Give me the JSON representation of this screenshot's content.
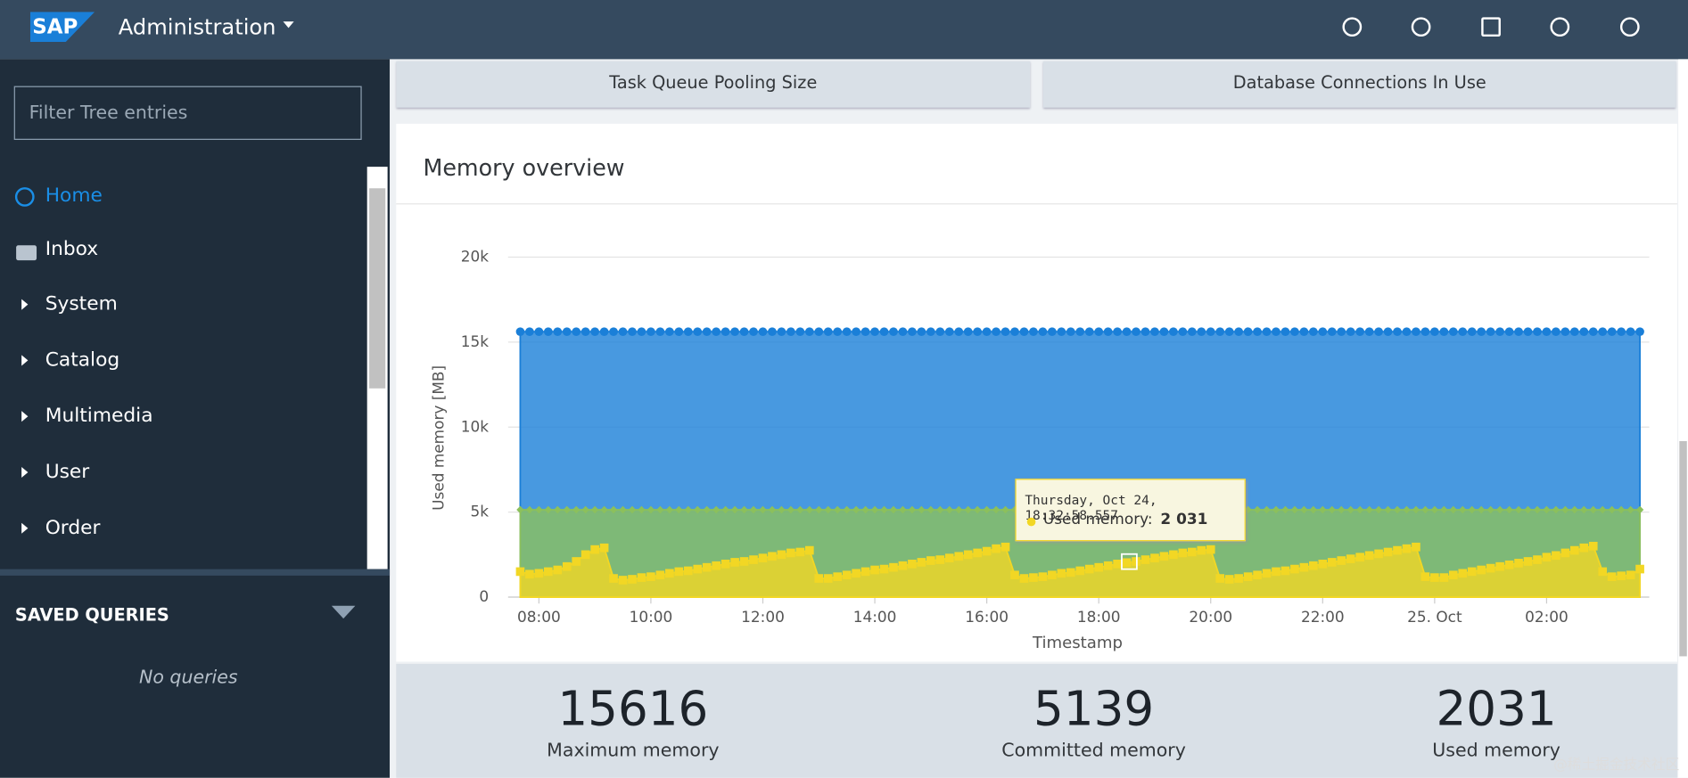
{
  "header": {
    "logo": "SAP",
    "title": "Administration"
  },
  "sidebar": {
    "filter_placeholder": "Filter Tree entries",
    "items": [
      "Home",
      "Inbox",
      "System",
      "Catalog",
      "Multimedia",
      "User",
      "Order"
    ],
    "saved_queries_title": "SAVED QUERIES",
    "saved_queries_empty": "No queries"
  },
  "tabs": [
    "Task Queue Pooling Size",
    "Database Connections In Use"
  ],
  "panel": {
    "title": "Memory overview"
  },
  "stats": [
    {
      "value": 15616,
      "label": "Maximum memory"
    },
    {
      "value": 5139,
      "label": "Committed memory"
    },
    {
      "value": 2031,
      "label": "Used memory"
    }
  ],
  "watermark": "@稀土掘金技术社区",
  "chart_data": {
    "type": "area",
    "ylabel": "Used memory [MB]",
    "xlabel": "Timestamp",
    "ylim": [
      0,
      20000
    ],
    "yticks": [
      0,
      {
        "value": 5000,
        "label": "5k"
      },
      {
        "value": 10000,
        "label": "10k"
      },
      {
        "value": 15000,
        "label": "15k"
      },
      {
        "value": 20000,
        "label": "20k"
      }
    ],
    "xlim": [
      "Oct 24 07:27",
      "Oct 25 03:50"
    ],
    "xticks": [
      {
        "value": "Oct 24 08:00",
        "label": "08:00"
      },
      {
        "value": "Oct 24 10:00",
        "label": "10:00"
      },
      {
        "value": "Oct 24 12:00",
        "label": "12:00"
      },
      {
        "value": "Oct 24 14:00",
        "label": "14:00"
      },
      {
        "value": "Oct 24 16:00",
        "label": "16:00"
      },
      {
        "value": "Oct 24 18:00",
        "label": "18:00"
      },
      {
        "value": "Oct 24 20:00",
        "label": "20:00"
      },
      {
        "value": "Oct 24 22:00",
        "label": "22:00"
      },
      {
        "value": "Oct 25 00:00",
        "label": "25. Oct"
      },
      {
        "value": "Oct 25 02:00",
        "label": "02:00"
      }
    ],
    "grid": true,
    "tooltip": {
      "title": "Thursday, Oct 24, 18:32:58.557",
      "label": "Used memory:",
      "value": "2 031"
    },
    "x": [
      "Oct 24 07:40",
      "Oct 24 07:50",
      "Oct 24 08:00",
      "Oct 24 08:10",
      "Oct 24 08:20",
      "Oct 24 08:30",
      "Oct 24 08:40",
      "Oct 24 08:50",
      "Oct 24 09:00",
      "Oct 24 09:10",
      "Oct 24 09:20",
      "Oct 24 09:30",
      "Oct 24 09:40",
      "Oct 24 09:50",
      "Oct 24 10:00",
      "Oct 24 10:10",
      "Oct 24 10:20",
      "Oct 24 10:30",
      "Oct 24 10:40",
      "Oct 24 10:50",
      "Oct 24 11:00",
      "Oct 24 11:10",
      "Oct 24 11:20",
      "Oct 24 11:30",
      "Oct 24 11:40",
      "Oct 24 11:50",
      "Oct 24 12:00",
      "Oct 24 12:10",
      "Oct 24 12:20",
      "Oct 24 12:30",
      "Oct 24 12:40",
      "Oct 24 12:50",
      "Oct 24 13:00",
      "Oct 24 13:10",
      "Oct 24 13:20",
      "Oct 24 13:30",
      "Oct 24 13:40",
      "Oct 24 13:50",
      "Oct 24 14:00",
      "Oct 24 14:10",
      "Oct 24 14:20",
      "Oct 24 14:30",
      "Oct 24 14:40",
      "Oct 24 14:50",
      "Oct 24 15:00",
      "Oct 24 15:10",
      "Oct 24 15:20",
      "Oct 24 15:30",
      "Oct 24 15:40",
      "Oct 24 15:50",
      "Oct 24 16:00",
      "Oct 24 16:10",
      "Oct 24 16:20",
      "Oct 24 16:30",
      "Oct 24 16:40",
      "Oct 24 16:50",
      "Oct 24 17:00",
      "Oct 24 17:10",
      "Oct 24 17:20",
      "Oct 24 17:30",
      "Oct 24 17:40",
      "Oct 24 17:50",
      "Oct 24 18:00",
      "Oct 24 18:10",
      "Oct 24 18:20",
      "Oct 24 18:30",
      "Oct 24 18:40",
      "Oct 24 18:50",
      "Oct 24 19:00",
      "Oct 24 19:10",
      "Oct 24 19:20",
      "Oct 24 19:30",
      "Oct 24 19:40",
      "Oct 24 19:50",
      "Oct 24 20:00",
      "Oct 24 20:10",
      "Oct 24 20:20",
      "Oct 24 20:30",
      "Oct 24 20:40",
      "Oct 24 20:50",
      "Oct 24 21:00",
      "Oct 24 21:10",
      "Oct 24 21:20",
      "Oct 24 21:30",
      "Oct 24 21:40",
      "Oct 24 21:50",
      "Oct 24 22:00",
      "Oct 24 22:10",
      "Oct 24 22:20",
      "Oct 24 22:30",
      "Oct 24 22:40",
      "Oct 24 22:50",
      "Oct 24 23:00",
      "Oct 24 23:10",
      "Oct 24 23:20",
      "Oct 24 23:30",
      "Oct 24 23:40",
      "Oct 24 23:50",
      "Oct 25 00:00",
      "Oct 25 00:10",
      "Oct 25 00:20",
      "Oct 25 00:30",
      "Oct 25 00:40",
      "Oct 25 00:50",
      "Oct 25 01:00",
      "Oct 25 01:10",
      "Oct 25 01:20",
      "Oct 25 01:30",
      "Oct 25 01:40",
      "Oct 25 01:50",
      "Oct 25 02:00",
      "Oct 25 02:10",
      "Oct 25 02:20",
      "Oct 25 02:30",
      "Oct 25 02:40",
      "Oct 25 02:50",
      "Oct 25 03:00",
      "Oct 25 03:10",
      "Oct 25 03:20",
      "Oct 25 03:30",
      "Oct 25 03:40"
    ],
    "series": [
      {
        "name": "Maximum memory",
        "color": "#1a7fd8",
        "marker": "circle",
        "values": [
          15616,
          15616,
          15616,
          15616,
          15616,
          15616,
          15616,
          15616,
          15616,
          15616,
          15616,
          15616,
          15616,
          15616,
          15616,
          15616,
          15616,
          15616,
          15616,
          15616,
          15616,
          15616,
          15616,
          15616,
          15616,
          15616,
          15616,
          15616,
          15616,
          15616,
          15616,
          15616,
          15616,
          15616,
          15616,
          15616,
          15616,
          15616,
          15616,
          15616,
          15616,
          15616,
          15616,
          15616,
          15616,
          15616,
          15616,
          15616,
          15616,
          15616,
          15616,
          15616,
          15616,
          15616,
          15616,
          15616,
          15616,
          15616,
          15616,
          15616,
          15616,
          15616,
          15616,
          15616,
          15616,
          15616,
          15616,
          15616,
          15616,
          15616,
          15616,
          15616,
          15616,
          15616,
          15616,
          15616,
          15616,
          15616,
          15616,
          15616,
          15616,
          15616,
          15616,
          15616,
          15616,
          15616,
          15616,
          15616,
          15616,
          15616,
          15616,
          15616,
          15616,
          15616,
          15616,
          15616,
          15616,
          15616,
          15616,
          15616,
          15616,
          15616,
          15616,
          15616,
          15616,
          15616,
          15616,
          15616,
          15616,
          15616,
          15616,
          15616,
          15616,
          15616,
          15616,
          15616,
          15616,
          15616,
          15616,
          15616,
          15616
        ]
      },
      {
        "name": "Committed memory",
        "color": "#8cc05c",
        "marker": "diamond",
        "values": [
          5139,
          5139,
          5139,
          5139,
          5139,
          5139,
          5139,
          5139,
          5139,
          5139,
          5139,
          5139,
          5139,
          5139,
          5139,
          5139,
          5139,
          5139,
          5139,
          5139,
          5139,
          5139,
          5139,
          5139,
          5139,
          5139,
          5139,
          5139,
          5139,
          5139,
          5139,
          5139,
          5139,
          5139,
          5139,
          5139,
          5139,
          5139,
          5139,
          5139,
          5139,
          5139,
          5139,
          5139,
          5139,
          5139,
          5139,
          5139,
          5139,
          5139,
          5139,
          5139,
          5139,
          5139,
          5139,
          5139,
          5139,
          5139,
          5139,
          5139,
          5139,
          5139,
          5139,
          5139,
          5139,
          5139,
          5139,
          5139,
          5139,
          5139,
          5139,
          5139,
          5139,
          5139,
          5139,
          5139,
          5139,
          5139,
          5139,
          5139,
          5139,
          5139,
          5139,
          5139,
          5139,
          5139,
          5139,
          5139,
          5139,
          5139,
          5139,
          5139,
          5139,
          5139,
          5139,
          5139,
          5139,
          5139,
          5139,
          5139,
          5139,
          5139,
          5139,
          5139,
          5139,
          5139,
          5139,
          5139,
          5139,
          5139,
          5139,
          5139,
          5139,
          5139,
          5139,
          5139,
          5139,
          5139,
          5139,
          5139,
          5139
        ]
      },
      {
        "name": "Used memory",
        "color": "#f2d724",
        "marker": "square",
        "values": [
          1500,
          1350,
          1400,
          1500,
          1600,
          1800,
          2100,
          2500,
          2800,
          2900,
          1100,
          1000,
          1050,
          1150,
          1200,
          1300,
          1400,
          1500,
          1550,
          1650,
          1750,
          1850,
          1950,
          2050,
          2100,
          2200,
          2300,
          2400,
          2500,
          2600,
          2650,
          2750,
          1100,
          1100,
          1200,
          1300,
          1400,
          1500,
          1600,
          1650,
          1750,
          1850,
          1950,
          2050,
          2150,
          2200,
          2300,
          2400,
          2500,
          2600,
          2700,
          2850,
          2950,
          1300,
          1100,
          1150,
          1200,
          1300,
          1400,
          1450,
          1550,
          1650,
          1750,
          1850,
          1950,
          2031,
          2100,
          2200,
          2300,
          2400,
          2500,
          2600,
          2650,
          2750,
          2800,
          1100,
          1050,
          1100,
          1200,
          1300,
          1400,
          1500,
          1550,
          1650,
          1750,
          1850,
          1950,
          2050,
          2150,
          2250,
          2350,
          2450,
          2550,
          2650,
          2750,
          2850,
          2950,
          1200,
          1150,
          1150,
          1300,
          1400,
          1500,
          1600,
          1700,
          1800,
          1900,
          2000,
          2100,
          2200,
          2350,
          2450,
          2600,
          2750,
          2900,
          3000,
          1500,
          1200,
          1250,
          1300,
          1650
        ]
      }
    ]
  }
}
